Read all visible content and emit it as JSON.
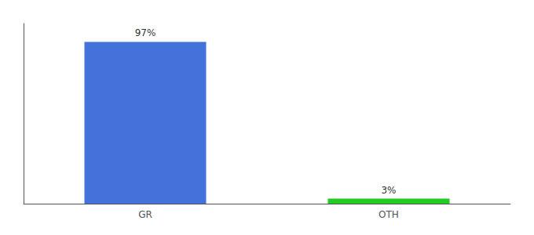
{
  "chart_data": {
    "type": "bar",
    "categories": [
      "GR",
      "OTH"
    ],
    "values": [
      97,
      3
    ],
    "value_labels": [
      "97%",
      "3%"
    ],
    "data_labels": true,
    "colors": [
      "#4472db",
      "#22cc22"
    ],
    "ylim": [
      0,
      108
    ],
    "yticks": [],
    "grid": false,
    "tick_labels": "x"
  }
}
